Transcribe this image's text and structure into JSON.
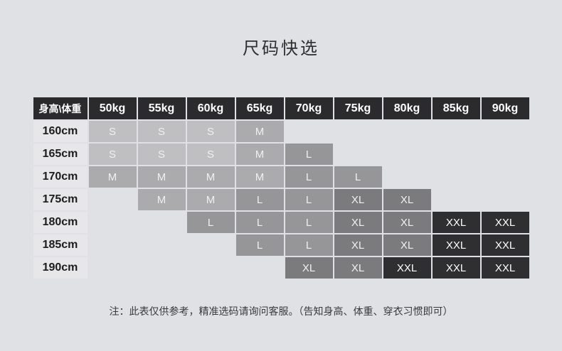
{
  "page": {
    "title": "尺码快选",
    "note": "注：此表仅供参考，精准选码请询问客服。（告知身高、体重、穿衣习惯即可）"
  },
  "chart_data": {
    "type": "table",
    "title": "尺码快选",
    "corner_label": "身高\\体重",
    "columns": [
      "50kg",
      "55kg",
      "60kg",
      "65kg",
      "70kg",
      "75kg",
      "80kg",
      "85kg",
      "90kg"
    ],
    "rows": [
      {
        "height": "160cm",
        "sizes": [
          "S",
          "S",
          "S",
          "M",
          "",
          "",
          "",
          "",
          ""
        ]
      },
      {
        "height": "165cm",
        "sizes": [
          "S",
          "S",
          "S",
          "M",
          "L",
          "",
          "",
          "",
          ""
        ]
      },
      {
        "height": "170cm",
        "sizes": [
          "M",
          "M",
          "M",
          "M",
          "L",
          "L",
          "",
          "",
          ""
        ]
      },
      {
        "height": "175cm",
        "sizes": [
          "",
          "M",
          "M",
          "L",
          "L",
          "XL",
          "XL",
          "",
          ""
        ]
      },
      {
        "height": "180cm",
        "sizes": [
          "",
          "",
          "L",
          "L",
          "L",
          "XL",
          "XL",
          "XXL",
          "XXL"
        ]
      },
      {
        "height": "185cm",
        "sizes": [
          "",
          "",
          "",
          "L",
          "L",
          "XL",
          "XL",
          "XXL",
          "XXL"
        ]
      },
      {
        "height": "190cm",
        "sizes": [
          "",
          "",
          "",
          "",
          "XL",
          "XL",
          "XXL",
          "XXL",
          "XXL"
        ]
      }
    ],
    "size_scale": [
      "S",
      "M",
      "L",
      "XL",
      "XXL"
    ]
  },
  "colors": {
    "page_bg": "#e0e1e5",
    "header_bg": "#2b2b2d",
    "header_text": "#ffffff",
    "label_bg": "#e7e7e9",
    "label_text": "#1c1c1e",
    "size_S": "#bfbfc1",
    "size_M": "#ababad",
    "size_L": "#969698",
    "size_XL": "#7b7b7d",
    "size_XXL": "#2f2f31",
    "cell_text": "#f0f0f0",
    "title_text": "#2f2f2f",
    "note_text": "#3a3a3a"
  }
}
